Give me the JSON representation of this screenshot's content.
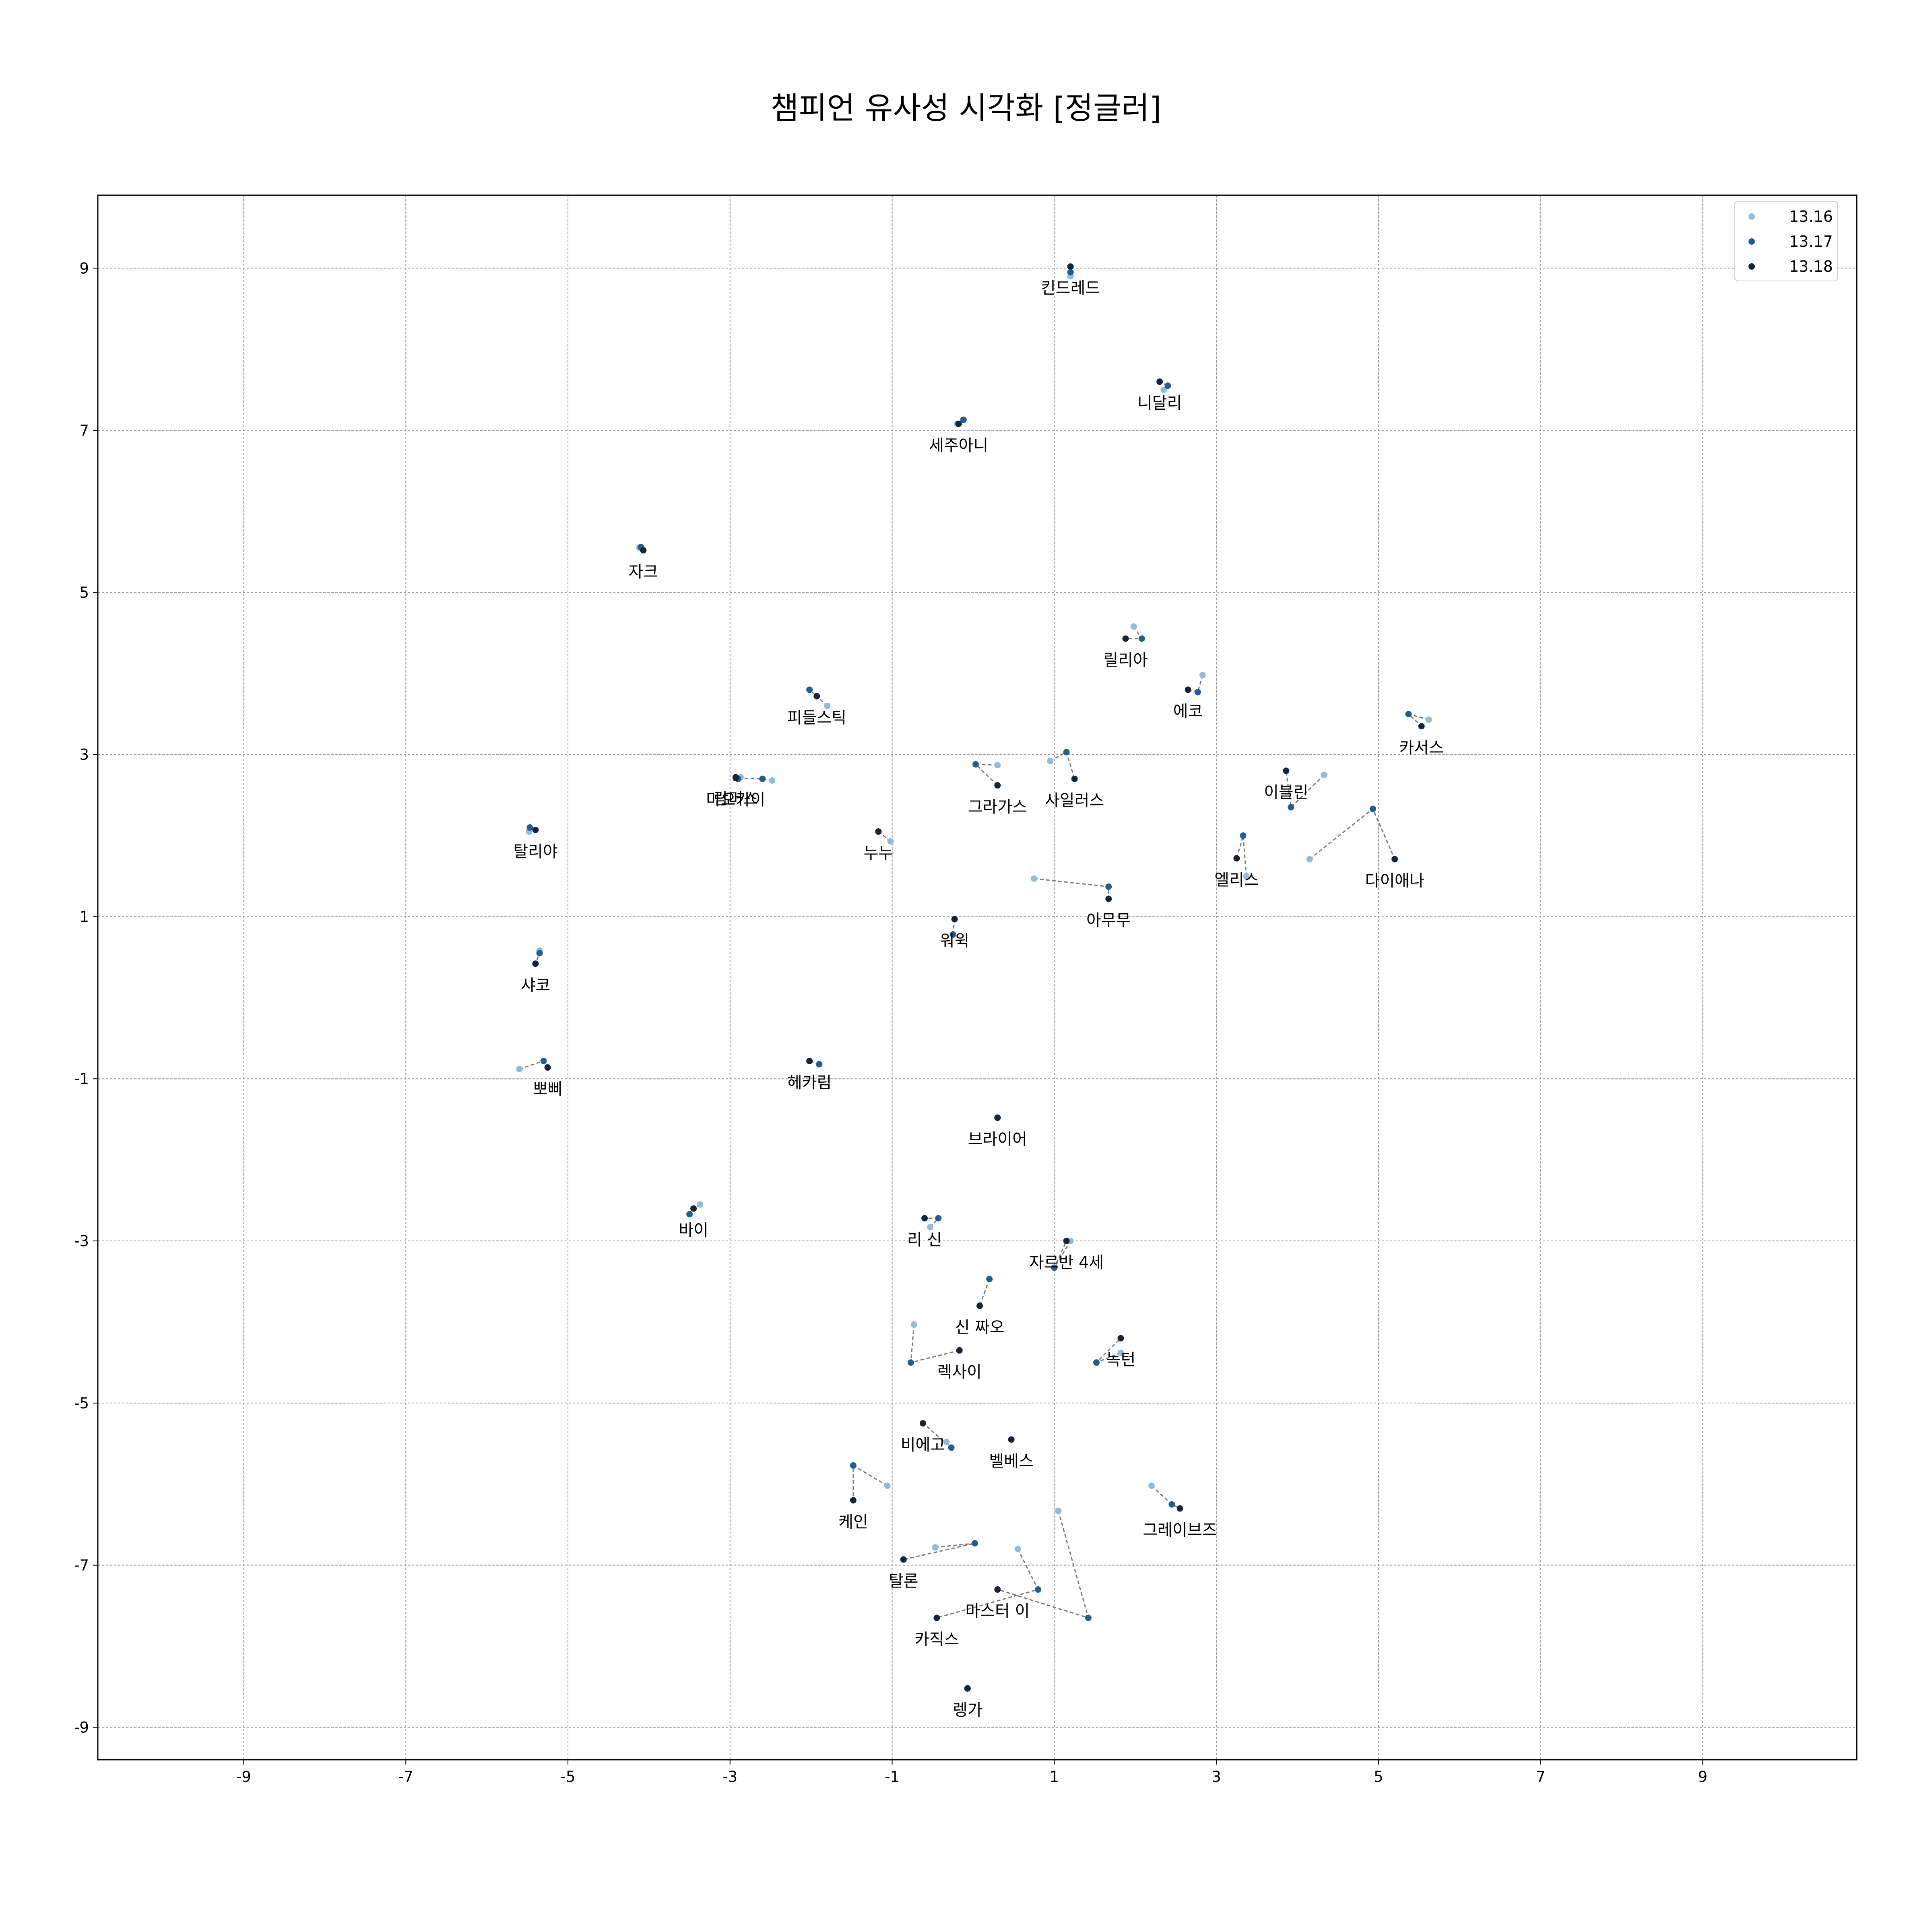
{
  "chart_data": {
    "type": "scatter",
    "title": "챔피언 유사성 시각화 [정글러]",
    "xlabel": "",
    "ylabel": "",
    "xlim": [
      -10.8,
      10.9
    ],
    "ylim": [
      -9.4,
      9.9
    ],
    "xticks": [
      -9,
      -7,
      -5,
      -3,
      -1,
      1,
      3,
      5,
      7,
      9
    ],
    "yticks": [
      -9,
      -7,
      -5,
      -3,
      -1,
      1,
      3,
      5,
      7,
      9
    ],
    "grid": true,
    "legend_position": "top-right",
    "series": [
      {
        "name": "13.16",
        "color": "#92bcdc"
      },
      {
        "name": "13.17",
        "color": "#1f5f96"
      },
      {
        "name": "13.18",
        "color": "#16243a"
      }
    ],
    "points": [
      {
        "name": "킨드레드",
        "coords": [
          [
            1.2,
            8.9
          ],
          [
            1.2,
            8.95
          ],
          [
            1.2,
            9.02
          ]
        ]
      },
      {
        "name": "니달리",
        "coords": [
          [
            2.35,
            7.5
          ],
          [
            2.4,
            7.55
          ],
          [
            2.3,
            7.6
          ]
        ]
      },
      {
        "name": "세주아니",
        "coords": [
          [
            -0.2,
            7.08
          ],
          [
            -0.12,
            7.13
          ],
          [
            -0.18,
            7.08
          ]
        ]
      },
      {
        "name": "자크",
        "coords": [
          [
            -4.12,
            5.55
          ],
          [
            -4.1,
            5.56
          ],
          [
            -4.07,
            5.52
          ]
        ]
      },
      {
        "name": "릴리아",
        "coords": [
          [
            1.98,
            4.58
          ],
          [
            2.08,
            4.43
          ],
          [
            1.88,
            4.43
          ]
        ]
      },
      {
        "name": "에코",
        "coords": [
          [
            2.83,
            3.98
          ],
          [
            2.77,
            3.77
          ],
          [
            2.65,
            3.8
          ]
        ]
      },
      {
        "name": "카서스",
        "coords": [
          [
            5.62,
            3.43
          ],
          [
            5.37,
            3.5
          ],
          [
            5.53,
            3.35
          ]
        ]
      },
      {
        "name": "피들스틱",
        "coords": [
          [
            -1.8,
            3.6
          ],
          [
            -2.02,
            3.8
          ],
          [
            -1.93,
            3.72
          ]
        ]
      },
      {
        "name": "그라가스",
        "coords": [
          [
            0.3,
            2.87
          ],
          [
            0.03,
            2.88
          ],
          [
            0.3,
            2.62
          ]
        ]
      },
      {
        "name": "사일러스",
        "coords": [
          [
            0.95,
            2.92
          ],
          [
            1.15,
            3.03
          ],
          [
            1.25,
            2.7
          ]
        ]
      },
      {
        "name": "이블린",
        "coords": [
          [
            4.33,
            2.75
          ],
          [
            3.92,
            2.35
          ],
          [
            3.86,
            2.8
          ]
        ]
      },
      {
        "name": "람머스",
        "coords": [
          [
            -2.87,
            2.72
          ],
          [
            -2.9,
            2.7
          ],
          [
            -2.93,
            2.72
          ]
        ]
      },
      {
        "name": "마오카이",
        "coords": [
          [
            -2.48,
            2.68
          ],
          [
            -2.6,
            2.7
          ],
          [
            -2.93,
            2.71
          ]
        ]
      },
      {
        "name": "탈리야",
        "coords": [
          [
            -5.48,
            2.05
          ],
          [
            -5.47,
            2.1
          ],
          [
            -5.4,
            2.07
          ]
        ]
      },
      {
        "name": "누누",
        "coords": [
          [
            -1.02,
            1.93
          ],
          [
            -1.17,
            2.05
          ],
          [
            -1.17,
            2.05
          ]
        ]
      },
      {
        "name": "엘리스",
        "coords": [
          [
            3.37,
            1.5
          ],
          [
            3.33,
            2.0
          ],
          [
            3.25,
            1.72
          ]
        ]
      },
      {
        "name": "다이애나",
        "coords": [
          [
            4.15,
            1.71
          ],
          [
            4.93,
            2.33
          ],
          [
            5.2,
            1.71
          ]
        ]
      },
      {
        "name": "아무무",
        "coords": [
          [
            0.75,
            1.47
          ],
          [
            1.67,
            1.37
          ],
          [
            1.67,
            1.22
          ]
        ]
      },
      {
        "name": "워윅",
        "coords": [
          [
            -0.25,
            0.78
          ],
          [
            -0.25,
            0.78
          ],
          [
            -0.23,
            0.97
          ]
        ]
      },
      {
        "name": "샤코",
        "coords": [
          [
            -5.35,
            0.58
          ],
          [
            -5.35,
            0.55
          ],
          [
            -5.4,
            0.42
          ]
        ]
      },
      {
        "name": "뽀삐",
        "coords": [
          [
            -5.6,
            -0.88
          ],
          [
            -5.3,
            -0.78
          ],
          [
            -5.25,
            -0.86
          ]
        ]
      },
      {
        "name": "헤카림",
        "coords": [
          [
            -1.9,
            -0.82
          ],
          [
            -1.9,
            -0.82
          ],
          [
            -2.02,
            -0.78
          ]
        ]
      },
      {
        "name": "브라이어",
        "coords": [
          [
            0.3,
            -1.48
          ],
          [
            0.3,
            -1.48
          ],
          [
            0.3,
            -1.48
          ]
        ]
      },
      {
        "name": "바이",
        "coords": [
          [
            -3.37,
            -2.55
          ],
          [
            -3.5,
            -2.67
          ],
          [
            -3.45,
            -2.6
          ]
        ]
      },
      {
        "name": "리 신",
        "coords": [
          [
            -0.53,
            -2.83
          ],
          [
            -0.43,
            -2.72
          ],
          [
            -0.6,
            -2.72
          ]
        ]
      },
      {
        "name": "자르반 4세",
        "coords": [
          [
            1.2,
            -3.0
          ],
          [
            1.0,
            -3.33
          ],
          [
            1.15,
            -3.0
          ]
        ]
      },
      {
        "name": "신 짜오",
        "coords": [
          [
            0.2,
            -3.47
          ],
          [
            0.2,
            -3.47
          ],
          [
            0.08,
            -3.8
          ]
        ]
      },
      {
        "name": "렉사이",
        "coords": [
          [
            -0.73,
            -4.03
          ],
          [
            -0.77,
            -4.5
          ],
          [
            -0.17,
            -4.35
          ]
        ]
      },
      {
        "name": "녹턴",
        "coords": [
          [
            1.82,
            -4.38
          ],
          [
            1.52,
            -4.5
          ],
          [
            1.82,
            -4.2
          ]
        ]
      },
      {
        "name": "비에고",
        "coords": [
          [
            -0.33,
            -5.48
          ],
          [
            -0.27,
            -5.55
          ],
          [
            -0.62,
            -5.25
          ]
        ]
      },
      {
        "name": "벨베스",
        "coords": [
          [
            0.47,
            -5.45
          ],
          [
            0.47,
            -5.45
          ],
          [
            0.47,
            -5.45
          ]
        ]
      },
      {
        "name": "케인",
        "coords": [
          [
            -1.06,
            -6.02
          ],
          [
            -1.48,
            -5.77
          ],
          [
            -1.48,
            -6.2
          ]
        ]
      },
      {
        "name": "그레이브즈",
        "coords": [
          [
            2.2,
            -6.02
          ],
          [
            2.45,
            -6.25
          ],
          [
            2.55,
            -6.3
          ]
        ]
      },
      {
        "name": "탈론",
        "coords": [
          [
            -0.47,
            -6.78
          ],
          [
            0.02,
            -6.73
          ],
          [
            -0.86,
            -6.93
          ]
        ]
      },
      {
        "name": "카직스",
        "coords": [
          [
            0.55,
            -6.8
          ],
          [
            0.8,
            -7.3
          ],
          [
            -0.45,
            -7.65
          ]
        ]
      },
      {
        "name": "마스터 이",
        "coords": [
          [
            1.05,
            -6.33
          ],
          [
            1.42,
            -7.65
          ],
          [
            0.3,
            -7.3
          ]
        ]
      },
      {
        "name": "렝가",
        "coords": [
          [
            -0.07,
            -8.52
          ],
          [
            -0.07,
            -8.52
          ],
          [
            -0.07,
            -8.52
          ]
        ]
      }
    ]
  }
}
